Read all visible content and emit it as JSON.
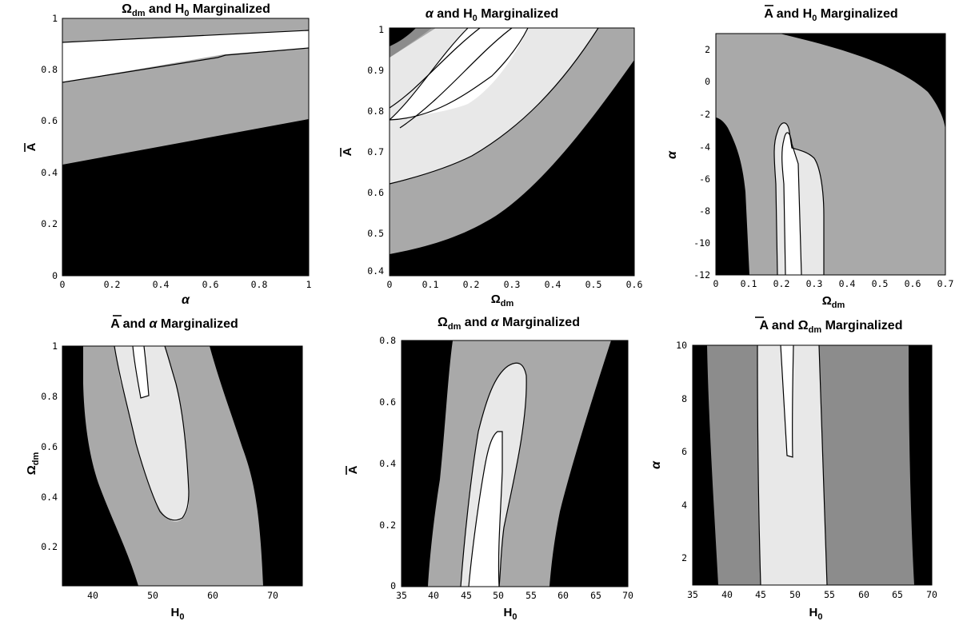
{
  "colors": {
    "black": "#000000",
    "level_dark": "#8c8c8c",
    "level_mid": "#a9a9a9",
    "level_light": "#e8e8e8",
    "white": "#ffffff"
  },
  "chart_data": [
    {
      "type": "contour",
      "title": "Ω_dm and H_0 Marginalized",
      "title_html": "Ω<tspan font-size='11' dy='3'>dm</tspan><tspan dy='-3'> and H</tspan><tspan font-size='11' dy='3'>0</tspan><tspan dy='-3'> Marginalized</tspan>",
      "xlabel": "α",
      "ylabel": "Ā",
      "xlim": [
        0,
        1
      ],
      "ylim": [
        0,
        1
      ],
      "xticks": [
        "0",
        "0.2",
        "0.4",
        "0.6",
        "0.8",
        "1"
      ],
      "yticks": [
        "0",
        "0.2",
        "0.4",
        "0.6",
        "0.8",
        "1"
      ]
    },
    {
      "type": "contour",
      "title": "α and H_0 Marginalized",
      "xlabel": "Ω_dm",
      "ylabel": "Ā",
      "xlim": [
        0,
        0.6
      ],
      "ylim": [
        0.4,
        1.0
      ],
      "xticks": [
        "0",
        "0.1",
        "0.2",
        "0.3",
        "0.4",
        "0.5",
        "0.6"
      ],
      "yticks": [
        "0.4",
        "0.5",
        "0.6",
        "0.7",
        "0.8",
        "0.9",
        "1"
      ]
    },
    {
      "type": "contour",
      "title": "Ā and H_0 Marginalized",
      "xlabel": "Ω_dm",
      "ylabel": "α",
      "xlim": [
        0,
        0.7
      ],
      "ylim": [
        -12,
        3
      ],
      "xticks": [
        "0",
        "0.1",
        "0.2",
        "0.3",
        "0.4",
        "0.5",
        "0.6",
        "0.7"
      ],
      "yticks": [
        "-12",
        "-10",
        "-8",
        "-6",
        "-4",
        "-2",
        "0",
        "2"
      ]
    },
    {
      "type": "contour",
      "title": "Ā and α Marginalized",
      "xlabel": "H_0",
      "ylabel": "Ω_dm",
      "xlim": [
        35,
        75
      ],
      "ylim": [
        0.05,
        1.0
      ],
      "xticks": [
        "40",
        "50",
        "60",
        "70"
      ],
      "yticks": [
        "0.2",
        "0.4",
        "0.6",
        "0.8",
        "1"
      ]
    },
    {
      "type": "contour",
      "title": "Ω_dm and α Marginalized",
      "xlabel": "H_0",
      "ylabel": "Ā",
      "xlim": [
        35,
        70
      ],
      "ylim": [
        0,
        0.8
      ],
      "xticks": [
        "35",
        "40",
        "45",
        "50",
        "55",
        "60",
        "65",
        "70"
      ],
      "yticks": [
        "0",
        "0.2",
        "0.4",
        "0.6",
        "0.8"
      ]
    },
    {
      "type": "contour",
      "title": "Ā and Ω_dm Marginalized",
      "xlabel": "H_0",
      "ylabel": "α",
      "xlim": [
        35,
        70
      ],
      "ylim": [
        0.9,
        10
      ],
      "xticks": [
        "35",
        "40",
        "45",
        "50",
        "55",
        "60",
        "65",
        "70"
      ],
      "yticks": [
        "2",
        "4",
        "6",
        "8",
        "10"
      ]
    }
  ]
}
